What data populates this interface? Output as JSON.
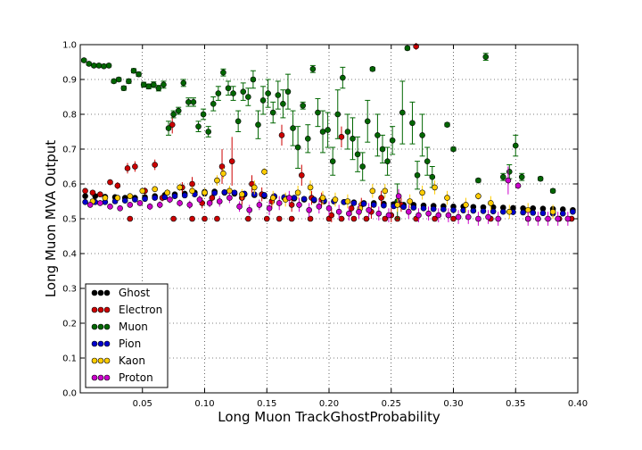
{
  "chart_data": {
    "type": "scatter",
    "title": "",
    "xlabel": "Long Muon TrackGhostProbability",
    "ylabel": "Long Muon MVA Output",
    "xlim": [
      0.0,
      0.4
    ],
    "ylim": [
      0.0,
      1.0
    ],
    "xticks": [
      0.05,
      0.1,
      0.15,
      0.2,
      0.25,
      0.3,
      0.35,
      0.4
    ],
    "xtick_labels": [
      "0.05",
      "0.10",
      "0.15",
      "0.20",
      "0.25",
      "0.30",
      "0.35",
      "0.40"
    ],
    "yticks": [
      0.0,
      0.1,
      0.2,
      0.3,
      0.4,
      0.5,
      0.6,
      0.7,
      0.8,
      0.9,
      1.0
    ],
    "ytick_labels": [
      "0.0",
      "0.1",
      "0.2",
      "0.3",
      "0.4",
      "0.5",
      "0.6",
      "0.7",
      "0.8",
      "0.9",
      "1.0"
    ],
    "grid": true,
    "legend_position": "lower-left",
    "series": [
      {
        "name": "Ghost",
        "color": "#000000",
        "x": [
          0.004,
          0.012,
          0.02,
          0.028,
          0.036,
          0.044,
          0.052,
          0.06,
          0.068,
          0.076,
          0.084,
          0.092,
          0.1,
          0.108,
          0.116,
          0.124,
          0.132,
          0.14,
          0.148,
          0.156,
          0.164,
          0.172,
          0.18,
          0.188,
          0.196,
          0.204,
          0.212,
          0.22,
          0.228,
          0.236,
          0.244,
          0.252,
          0.26,
          0.268,
          0.276,
          0.284,
          0.292,
          0.3,
          0.308,
          0.316,
          0.324,
          0.332,
          0.34,
          0.348,
          0.356,
          0.364,
          0.372,
          0.38,
          0.388,
          0.396
        ],
        "y": [
          0.565,
          0.565,
          0.563,
          0.562,
          0.56,
          0.56,
          0.562,
          0.565,
          0.568,
          0.57,
          0.572,
          0.575,
          0.577,
          0.578,
          0.575,
          0.572,
          0.57,
          0.568,
          0.565,
          0.563,
          0.56,
          0.558,
          0.555,
          0.553,
          0.55,
          0.55,
          0.548,
          0.547,
          0.545,
          0.545,
          0.543,
          0.542,
          0.54,
          0.54,
          0.538,
          0.537,
          0.536,
          0.535,
          0.535,
          0.534,
          0.533,
          0.533,
          0.532,
          0.531,
          0.53,
          0.53,
          0.529,
          0.528,
          0.527,
          0.525
        ],
        "err": [
          0.004,
          0.004,
          0.004,
          0.004,
          0.004,
          0.004,
          0.004,
          0.004,
          0.004,
          0.004,
          0.004,
          0.004,
          0.004,
          0.004,
          0.004,
          0.004,
          0.004,
          0.004,
          0.004,
          0.004,
          0.004,
          0.004,
          0.004,
          0.004,
          0.004,
          0.004,
          0.004,
          0.004,
          0.004,
          0.004,
          0.004,
          0.004,
          0.004,
          0.004,
          0.004,
          0.004,
          0.004,
          0.004,
          0.004,
          0.004,
          0.004,
          0.004,
          0.004,
          0.004,
          0.004,
          0.004,
          0.004,
          0.004,
          0.004,
          0.004
        ]
      },
      {
        "name": "Electron",
        "color": "#cc0000",
        "x": [
          0.004,
          0.01,
          0.016,
          0.024,
          0.03,
          0.038,
          0.044,
          0.052,
          0.06,
          0.066,
          0.074,
          0.082,
          0.09,
          0.098,
          0.106,
          0.114,
          0.122,
          0.13,
          0.138,
          0.146,
          0.154,
          0.162,
          0.17,
          0.178,
          0.186,
          0.194,
          0.202,
          0.21,
          0.218,
          0.226,
          0.234,
          0.242,
          0.25,
          0.258,
          0.27
        ],
        "y": [
          0.58,
          0.575,
          0.57,
          0.605,
          0.595,
          0.645,
          0.65,
          0.58,
          0.655,
          0.56,
          0.77,
          0.59,
          0.6,
          0.545,
          0.56,
          0.65,
          0.665,
          0.56,
          0.6,
          0.57,
          0.55,
          0.74,
          0.54,
          0.625,
          0.56,
          0.555,
          0.51,
          0.735,
          0.53,
          0.54,
          0.52,
          0.56,
          0.51,
          0.54,
          0.995
        ],
        "err": [
          0.006,
          0.008,
          0.008,
          0.008,
          0.01,
          0.015,
          0.015,
          0.01,
          0.015,
          0.01,
          0.025,
          0.015,
          0.02,
          0.015,
          0.015,
          0.05,
          0.07,
          0.02,
          0.025,
          0.02,
          0.02,
          0.03,
          0.02,
          0.03,
          0.02,
          0.02,
          0.02,
          0.03,
          0.02,
          0.02,
          0.02,
          0.02,
          0.02,
          0.02,
          0.01
        ]
      },
      {
        "name": "Muon",
        "color": "#006600",
        "x": [
          0.003,
          0.007,
          0.011,
          0.015,
          0.019,
          0.023,
          0.027,
          0.031,
          0.035,
          0.039,
          0.043,
          0.047,
          0.051,
          0.055,
          0.059,
          0.063,
          0.067,
          0.071,
          0.075,
          0.079,
          0.083,
          0.087,
          0.091,
          0.095,
          0.099,
          0.103,
          0.107,
          0.111,
          0.115,
          0.119,
          0.123,
          0.127,
          0.131,
          0.135,
          0.139,
          0.143,
          0.147,
          0.151,
          0.155,
          0.159,
          0.163,
          0.167,
          0.171,
          0.175,
          0.179,
          0.183,
          0.187,
          0.191,
          0.195,
          0.199,
          0.203,
          0.207,
          0.211,
          0.215,
          0.219,
          0.223,
          0.227,
          0.231,
          0.235,
          0.239,
          0.243,
          0.247,
          0.251,
          0.255,
          0.259,
          0.263,
          0.267,
          0.271,
          0.275,
          0.279,
          0.283,
          0.295,
          0.3,
          0.32,
          0.326,
          0.34,
          0.345,
          0.35,
          0.355,
          0.37,
          0.38
        ],
        "y": [
          0.955,
          0.945,
          0.94,
          0.94,
          0.938,
          0.94,
          0.895,
          0.9,
          0.875,
          0.895,
          0.925,
          0.915,
          0.885,
          0.88,
          0.885,
          0.875,
          0.885,
          0.76,
          0.8,
          0.81,
          0.89,
          0.835,
          0.835,
          0.765,
          0.8,
          0.75,
          0.83,
          0.86,
          0.92,
          0.875,
          0.86,
          0.78,
          0.865,
          0.85,
          0.9,
          0.77,
          0.84,
          0.86,
          0.805,
          0.855,
          0.83,
          0.865,
          0.76,
          0.705,
          0.825,
          0.73,
          0.93,
          0.805,
          0.75,
          0.755,
          0.665,
          0.8,
          0.905,
          0.75,
          0.73,
          0.685,
          0.65,
          0.78,
          0.93,
          0.74,
          0.7,
          0.665,
          0.725,
          0.55,
          0.805,
          0.99,
          0.775,
          0.625,
          0.74,
          0.665,
          0.62,
          0.77,
          0.7,
          0.61,
          0.965,
          0.62,
          0.635,
          0.71,
          0.62,
          0.615,
          0.58
        ],
        "err": [
          0.004,
          0.004,
          0.004,
          0.004,
          0.004,
          0.004,
          0.005,
          0.005,
          0.006,
          0.006,
          0.006,
          0.006,
          0.007,
          0.007,
          0.008,
          0.008,
          0.01,
          0.02,
          0.01,
          0.01,
          0.01,
          0.012,
          0.012,
          0.015,
          0.015,
          0.015,
          0.02,
          0.02,
          0.01,
          0.02,
          0.02,
          0.03,
          0.025,
          0.025,
          0.025,
          0.04,
          0.04,
          0.04,
          0.03,
          0.04,
          0.04,
          0.05,
          0.05,
          0.06,
          0.01,
          0.04,
          0.01,
          0.04,
          0.06,
          0.05,
          0.04,
          0.07,
          0.03,
          0.05,
          0.06,
          0.05,
          0.04,
          0.06,
          0.005,
          0.06,
          0.04,
          0.04,
          0.04,
          0.05,
          0.09,
          0.005,
          0.06,
          0.04,
          0.06,
          0.04,
          0.03,
          0.005,
          0.005,
          0.005,
          0.01,
          0.01,
          0.02,
          0.03,
          0.01,
          0.005,
          0.005
        ],
        "capped": true
      },
      {
        "name": "Pion",
        "color": "#0000cc",
        "x": [
          0.004,
          0.012,
          0.02,
          0.028,
          0.036,
          0.044,
          0.052,
          0.06,
          0.068,
          0.076,
          0.084,
          0.092,
          0.1,
          0.108,
          0.116,
          0.124,
          0.132,
          0.14,
          0.148,
          0.156,
          0.164,
          0.172,
          0.18,
          0.188,
          0.196,
          0.204,
          0.212,
          0.22,
          0.228,
          0.236,
          0.244,
          0.252,
          0.26,
          0.268,
          0.276,
          0.284,
          0.292,
          0.3,
          0.308,
          0.316,
          0.324,
          0.332,
          0.34,
          0.348,
          0.356,
          0.364,
          0.372,
          0.38,
          0.388,
          0.396
        ],
        "y": [
          0.548,
          0.548,
          0.548,
          0.55,
          0.552,
          0.555,
          0.557,
          0.56,
          0.562,
          0.565,
          0.567,
          0.57,
          0.572,
          0.574,
          0.576,
          0.575,
          0.572,
          0.57,
          0.568,
          0.565,
          0.562,
          0.56,
          0.557,
          0.555,
          0.552,
          0.55,
          0.548,
          0.545,
          0.543,
          0.54,
          0.538,
          0.536,
          0.534,
          0.532,
          0.53,
          0.528,
          0.527,
          0.525,
          0.524,
          0.523,
          0.522,
          0.521,
          0.52,
          0.519,
          0.518,
          0.517,
          0.516,
          0.515,
          0.515,
          0.52
        ],
        "err": [
          0.004,
          0.004,
          0.004,
          0.004,
          0.004,
          0.004,
          0.004,
          0.004,
          0.004,
          0.004,
          0.004,
          0.004,
          0.004,
          0.004,
          0.004,
          0.004,
          0.004,
          0.004,
          0.004,
          0.004,
          0.004,
          0.004,
          0.004,
          0.004,
          0.004,
          0.004,
          0.004,
          0.004,
          0.004,
          0.004,
          0.004,
          0.004,
          0.004,
          0.004,
          0.004,
          0.004,
          0.004,
          0.004,
          0.004,
          0.004,
          0.004,
          0.004,
          0.004,
          0.004,
          0.004,
          0.004,
          0.004,
          0.004,
          0.004,
          0.004
        ]
      },
      {
        "name": "Kaon",
        "color": "#ffcc00",
        "x": [
          0.01,
          0.02,
          0.03,
          0.04,
          0.05,
          0.06,
          0.07,
          0.08,
          0.09,
          0.1,
          0.11,
          0.115,
          0.12,
          0.13,
          0.14,
          0.148,
          0.155,
          0.165,
          0.175,
          0.185,
          0.195,
          0.205,
          0.215,
          0.225,
          0.235,
          0.245,
          0.255,
          0.265,
          0.275,
          0.285,
          0.295,
          0.31,
          0.32,
          0.33,
          0.345,
          0.36,
          0.38
        ],
        "y": [
          0.55,
          0.56,
          0.56,
          0.565,
          0.58,
          0.585,
          0.575,
          0.59,
          0.58,
          0.575,
          0.61,
          0.63,
          0.58,
          0.57,
          0.59,
          0.635,
          0.56,
          0.555,
          0.575,
          0.59,
          0.56,
          0.555,
          0.55,
          0.53,
          0.58,
          0.58,
          0.54,
          0.55,
          0.575,
          0.59,
          0.56,
          0.54,
          0.565,
          0.545,
          0.52,
          0.525,
          0.52
        ],
        "err": [
          0.006,
          0.006,
          0.006,
          0.008,
          0.008,
          0.008,
          0.01,
          0.01,
          0.012,
          0.012,
          0.015,
          0.015,
          0.015,
          0.015,
          0.02,
          0.01,
          0.02,
          0.02,
          0.02,
          0.02,
          0.02,
          0.02,
          0.02,
          0.02,
          0.02,
          0.02,
          0.02,
          0.02,
          0.02,
          0.02,
          0.02,
          0.02,
          0.01,
          0.02,
          0.02,
          0.02,
          0.02
        ]
      },
      {
        "name": "Proton",
        "color": "#cc00cc",
        "x": [
          0.008,
          0.016,
          0.024,
          0.032,
          0.04,
          0.048,
          0.056,
          0.064,
          0.072,
          0.08,
          0.088,
          0.096,
          0.104,
          0.112,
          0.12,
          0.128,
          0.136,
          0.144,
          0.152,
          0.16,
          0.168,
          0.176,
          0.184,
          0.192,
          0.2,
          0.208,
          0.216,
          0.224,
          0.232,
          0.24,
          0.248,
          0.256,
          0.264,
          0.272,
          0.28,
          0.288,
          0.296,
          0.304,
          0.312,
          0.32,
          0.328,
          0.336,
          0.344,
          0.352,
          0.36,
          0.368,
          0.376,
          0.384,
          0.392
        ],
        "y": [
          0.54,
          0.545,
          0.535,
          0.53,
          0.54,
          0.545,
          0.535,
          0.54,
          0.555,
          0.545,
          0.54,
          0.555,
          0.545,
          0.55,
          0.56,
          0.535,
          0.525,
          0.54,
          0.53,
          0.545,
          0.56,
          0.54,
          0.525,
          0.535,
          0.53,
          0.52,
          0.515,
          0.52,
          0.525,
          0.515,
          0.51,
          0.565,
          0.52,
          0.51,
          0.515,
          0.51,
          0.51,
          0.505,
          0.505,
          0.5,
          0.505,
          0.5,
          0.61,
          0.595,
          0.5,
          0.5,
          0.5,
          0.5,
          0.5
        ],
        "err": [
          0.008,
          0.008,
          0.008,
          0.008,
          0.008,
          0.008,
          0.01,
          0.01,
          0.01,
          0.01,
          0.012,
          0.012,
          0.012,
          0.015,
          0.015,
          0.015,
          0.015,
          0.015,
          0.02,
          0.02,
          0.02,
          0.02,
          0.02,
          0.02,
          0.02,
          0.02,
          0.02,
          0.02,
          0.02,
          0.02,
          0.02,
          0.02,
          0.02,
          0.02,
          0.02,
          0.02,
          0.02,
          0.02,
          0.02,
          0.02,
          0.02,
          0.02,
          0.04,
          0.01,
          0.02,
          0.02,
          0.02,
          0.02,
          0.02
        ]
      }
    ],
    "floor_points": {
      "color": "#cc0000",
      "y": 0.5,
      "x": [
        0.04,
        0.075,
        0.09,
        0.1,
        0.11,
        0.135,
        0.15,
        0.16,
        0.17,
        0.185,
        0.2,
        0.21,
        0.22,
        0.23,
        0.245,
        0.255,
        0.27,
        0.285,
        0.3,
        0.33,
        0.36,
        0.385,
        0.395
      ]
    }
  }
}
